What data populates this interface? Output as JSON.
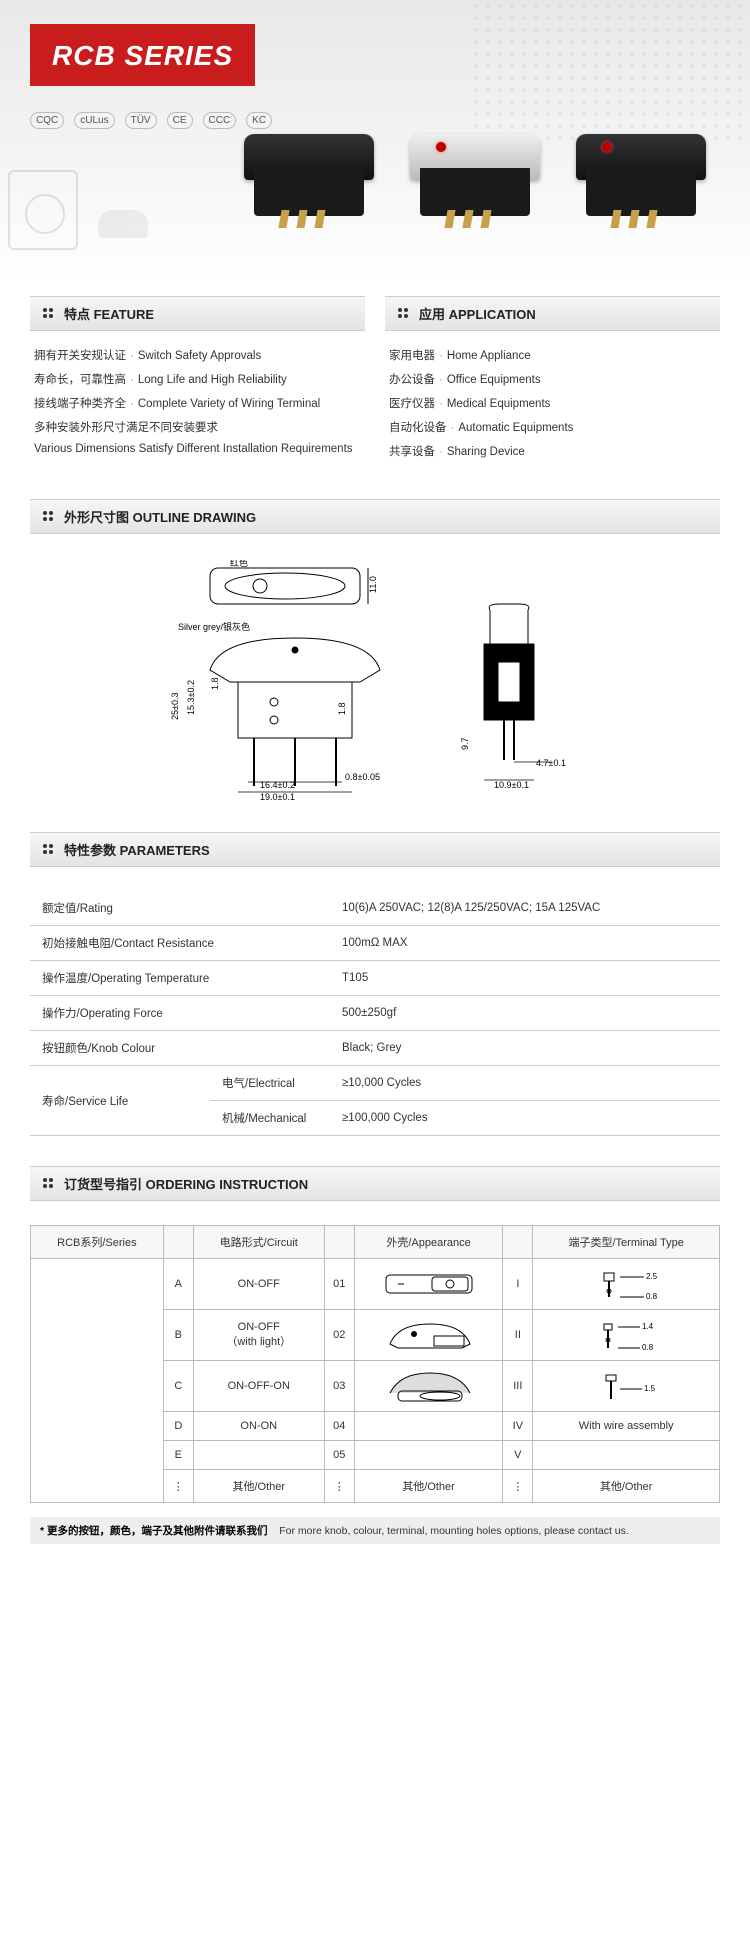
{
  "title": "RCB SERIES",
  "certifications": [
    "CQC",
    "cULus",
    "TÜV",
    "CE",
    "CCC",
    "KC"
  ],
  "colors": {
    "brand_red": "#c91c1c",
    "text": "#333333",
    "bar_bg_top": "#f6f6f6",
    "bar_bg_bot": "#e4e4e4",
    "border": "#cccccc"
  },
  "feature": {
    "heading": "特点 FEATURE",
    "items": [
      {
        "zh": "拥有开关安规认证",
        "en": "Switch Safety Approvals"
      },
      {
        "zh": "寿命长，可靠性高",
        "en": "Long Life and High Reliability"
      },
      {
        "zh": "接线端子种类齐全",
        "en": "Complete Variety of Wiring Terminal"
      },
      {
        "zh": "多种安装外形尺寸满足不同安装要求",
        "en": ""
      },
      {
        "zh": "",
        "en": "Various Dimensions Satisfy Different Installation Requirements"
      }
    ]
  },
  "application": {
    "heading": "应用 APPLICATION",
    "items": [
      {
        "zh": "家用电器",
        "en": "Home Appliance"
      },
      {
        "zh": "办公设备",
        "en": "Office Equipments"
      },
      {
        "zh": "医疗仪器",
        "en": "Medical Equipments"
      },
      {
        "zh": "自动化设备",
        "en": "Automatic Equipments"
      },
      {
        "zh": "共享设备",
        "en": "Sharing Device"
      }
    ]
  },
  "outline": {
    "heading": "外形尺寸图 OUTLINE DRAWING",
    "labels": {
      "red": "红色",
      "silver_grey": "Silver grey/银灰色"
    },
    "dims": {
      "top_width": "11.0",
      "body_w": "19.0±0.1",
      "pin_pitch": "16.4±0.2",
      "pin_w": "0.8±0.05",
      "body_h": "25±0.3",
      "inner_h": "15.3±0.2",
      "step": "1.8",
      "step2": "1.8",
      "side_w": "10.9±0.1",
      "side_t": "4.7±0.1",
      "side_h": "9.7"
    }
  },
  "parameters": {
    "heading": "特性参数 PARAMETERS",
    "rows": [
      {
        "label": "额定值/Rating",
        "value": "10(6)A 250VAC;  12(8)A 125/250VAC;  15A 125VAC"
      },
      {
        "label": "初始接触电阻/Contact Resistance",
        "value": "100mΩ MAX"
      },
      {
        "label": "操作温度/Operating Temperature",
        "value": "T105"
      },
      {
        "label": "操作力/Operating Force",
        "value": "500±250gf"
      },
      {
        "label": "按钮颜色/Knob Colour",
        "value": "Black; Grey"
      }
    ],
    "service_life": {
      "label": "寿命/Service Life",
      "electrical": {
        "label": "电气/Electrical",
        "value": "≥10,000 Cycles"
      },
      "mechanical": {
        "label": "机械/Mechanical",
        "value": "≥100,000 Cycles"
      }
    }
  },
  "ordering": {
    "heading": "订货型号指引 ORDERING INSTRUCTION",
    "headers": {
      "series": "RCB系列/Series",
      "circuit": "电路形式/Circuit",
      "appearance": "外壳/Appearance",
      "terminal": "端子类型/Terminal Type"
    },
    "rows": [
      {
        "code": "A",
        "circuit": "ON-OFF",
        "app_code": "01",
        "term_code": "I",
        "term_note": "",
        "appearance_desc": "rocker-flat",
        "terminal_desc": "quick-connect-2.5",
        "t_dims": [
          "2.5",
          "0.8"
        ]
      },
      {
        "code": "B",
        "circuit": "ON-OFF\n（with light）",
        "app_code": "02",
        "term_code": "II",
        "term_note": "",
        "appearance_desc": "rocker-light",
        "terminal_desc": "quick-connect-1.4",
        "t_dims": [
          "1.4",
          "0.8"
        ]
      },
      {
        "code": "C",
        "circuit": "ON-OFF-ON",
        "app_code": "03",
        "term_code": "III",
        "term_note": "",
        "appearance_desc": "rocker-grey",
        "terminal_desc": "solder-lug",
        "t_dims": [
          "1.5"
        ]
      },
      {
        "code": "D",
        "circuit": "ON-ON",
        "app_code": "04",
        "term_code": "IV",
        "term_note": "With wire assembly",
        "appearance_desc": "",
        "terminal_desc": "wire-assembly",
        "t_dims": []
      },
      {
        "code": "E",
        "circuit": "",
        "app_code": "05",
        "term_code": "V",
        "term_note": "",
        "appearance_desc": "",
        "terminal_desc": "",
        "t_dims": []
      },
      {
        "code": "⋮",
        "circuit": "其他/Other",
        "app_code": "⋮",
        "term_code": "⋮",
        "term_note": "其他/Other",
        "appearance_desc": "other",
        "terminal_desc": "other",
        "t_dims": [],
        "app_label": "其他/Other"
      }
    ]
  },
  "footnote": {
    "zh": "* 更多的按钮，颜色，端子及其他附件请联系我们",
    "en": "For more knob, colour, terminal, mounting holes options, please contact us."
  }
}
